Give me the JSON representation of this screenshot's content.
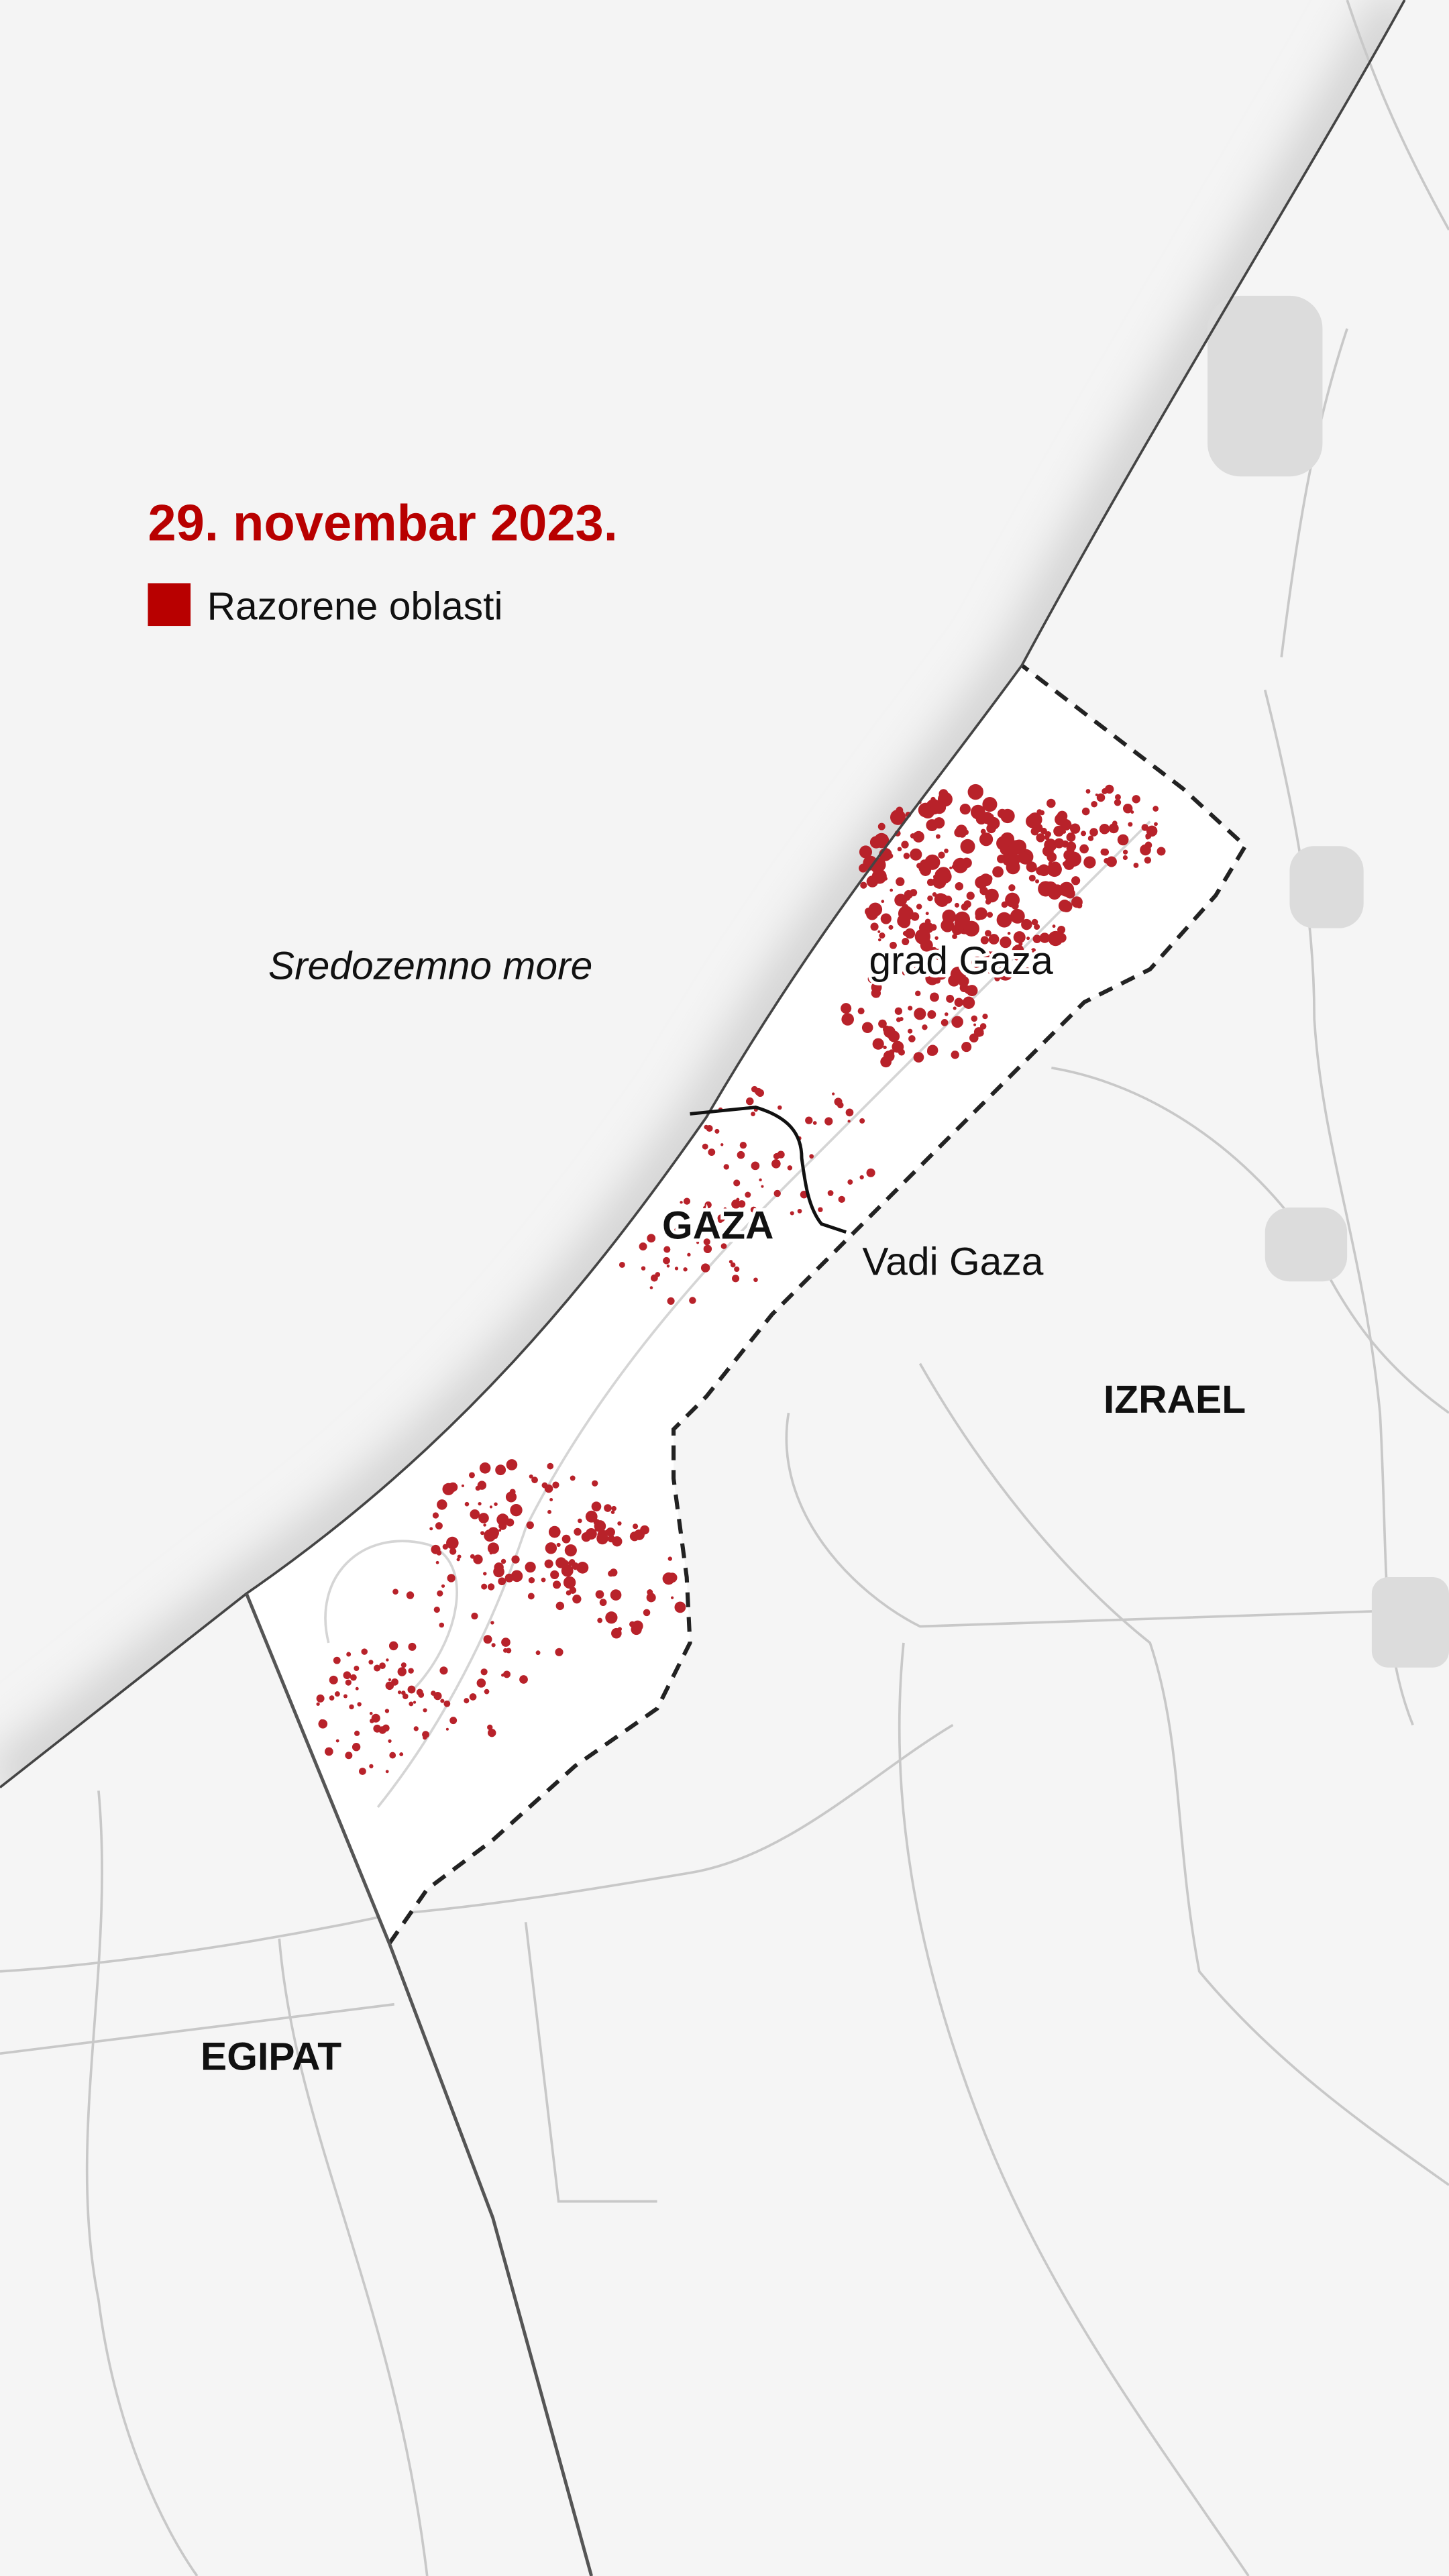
{
  "title": "29. novembar 2023.",
  "legend": {
    "label": "Razorene oblasti",
    "color": "#b80000"
  },
  "labels": {
    "sea": "Sredozemno more",
    "gaza_city": "grad Gaza",
    "gaza": "GAZA",
    "wadi_gaza": "Vadi Gaza",
    "israel": "IZRAEL",
    "egypt": "EGIPAT"
  },
  "colors": {
    "land": "#f5f5f5",
    "strip": "#ffffff",
    "damage": "#b8222a",
    "title": "#b80000"
  }
}
